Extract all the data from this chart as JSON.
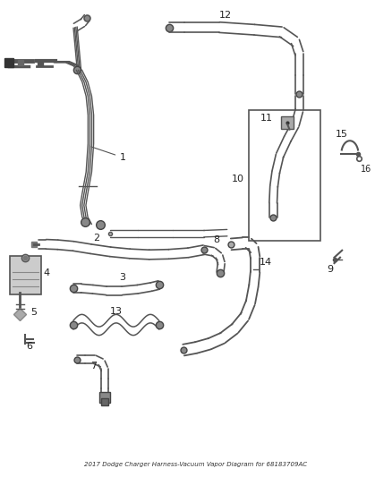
{
  "title": "2017 Dodge Charger Harness-Vacuum Vapor Diagram for 68183709AC",
  "background_color": "#ffffff",
  "line_color": "#555555",
  "label_color": "#222222",
  "box_color": "#333333",
  "figsize": [
    4.38,
    5.33
  ],
  "dpi": 100
}
